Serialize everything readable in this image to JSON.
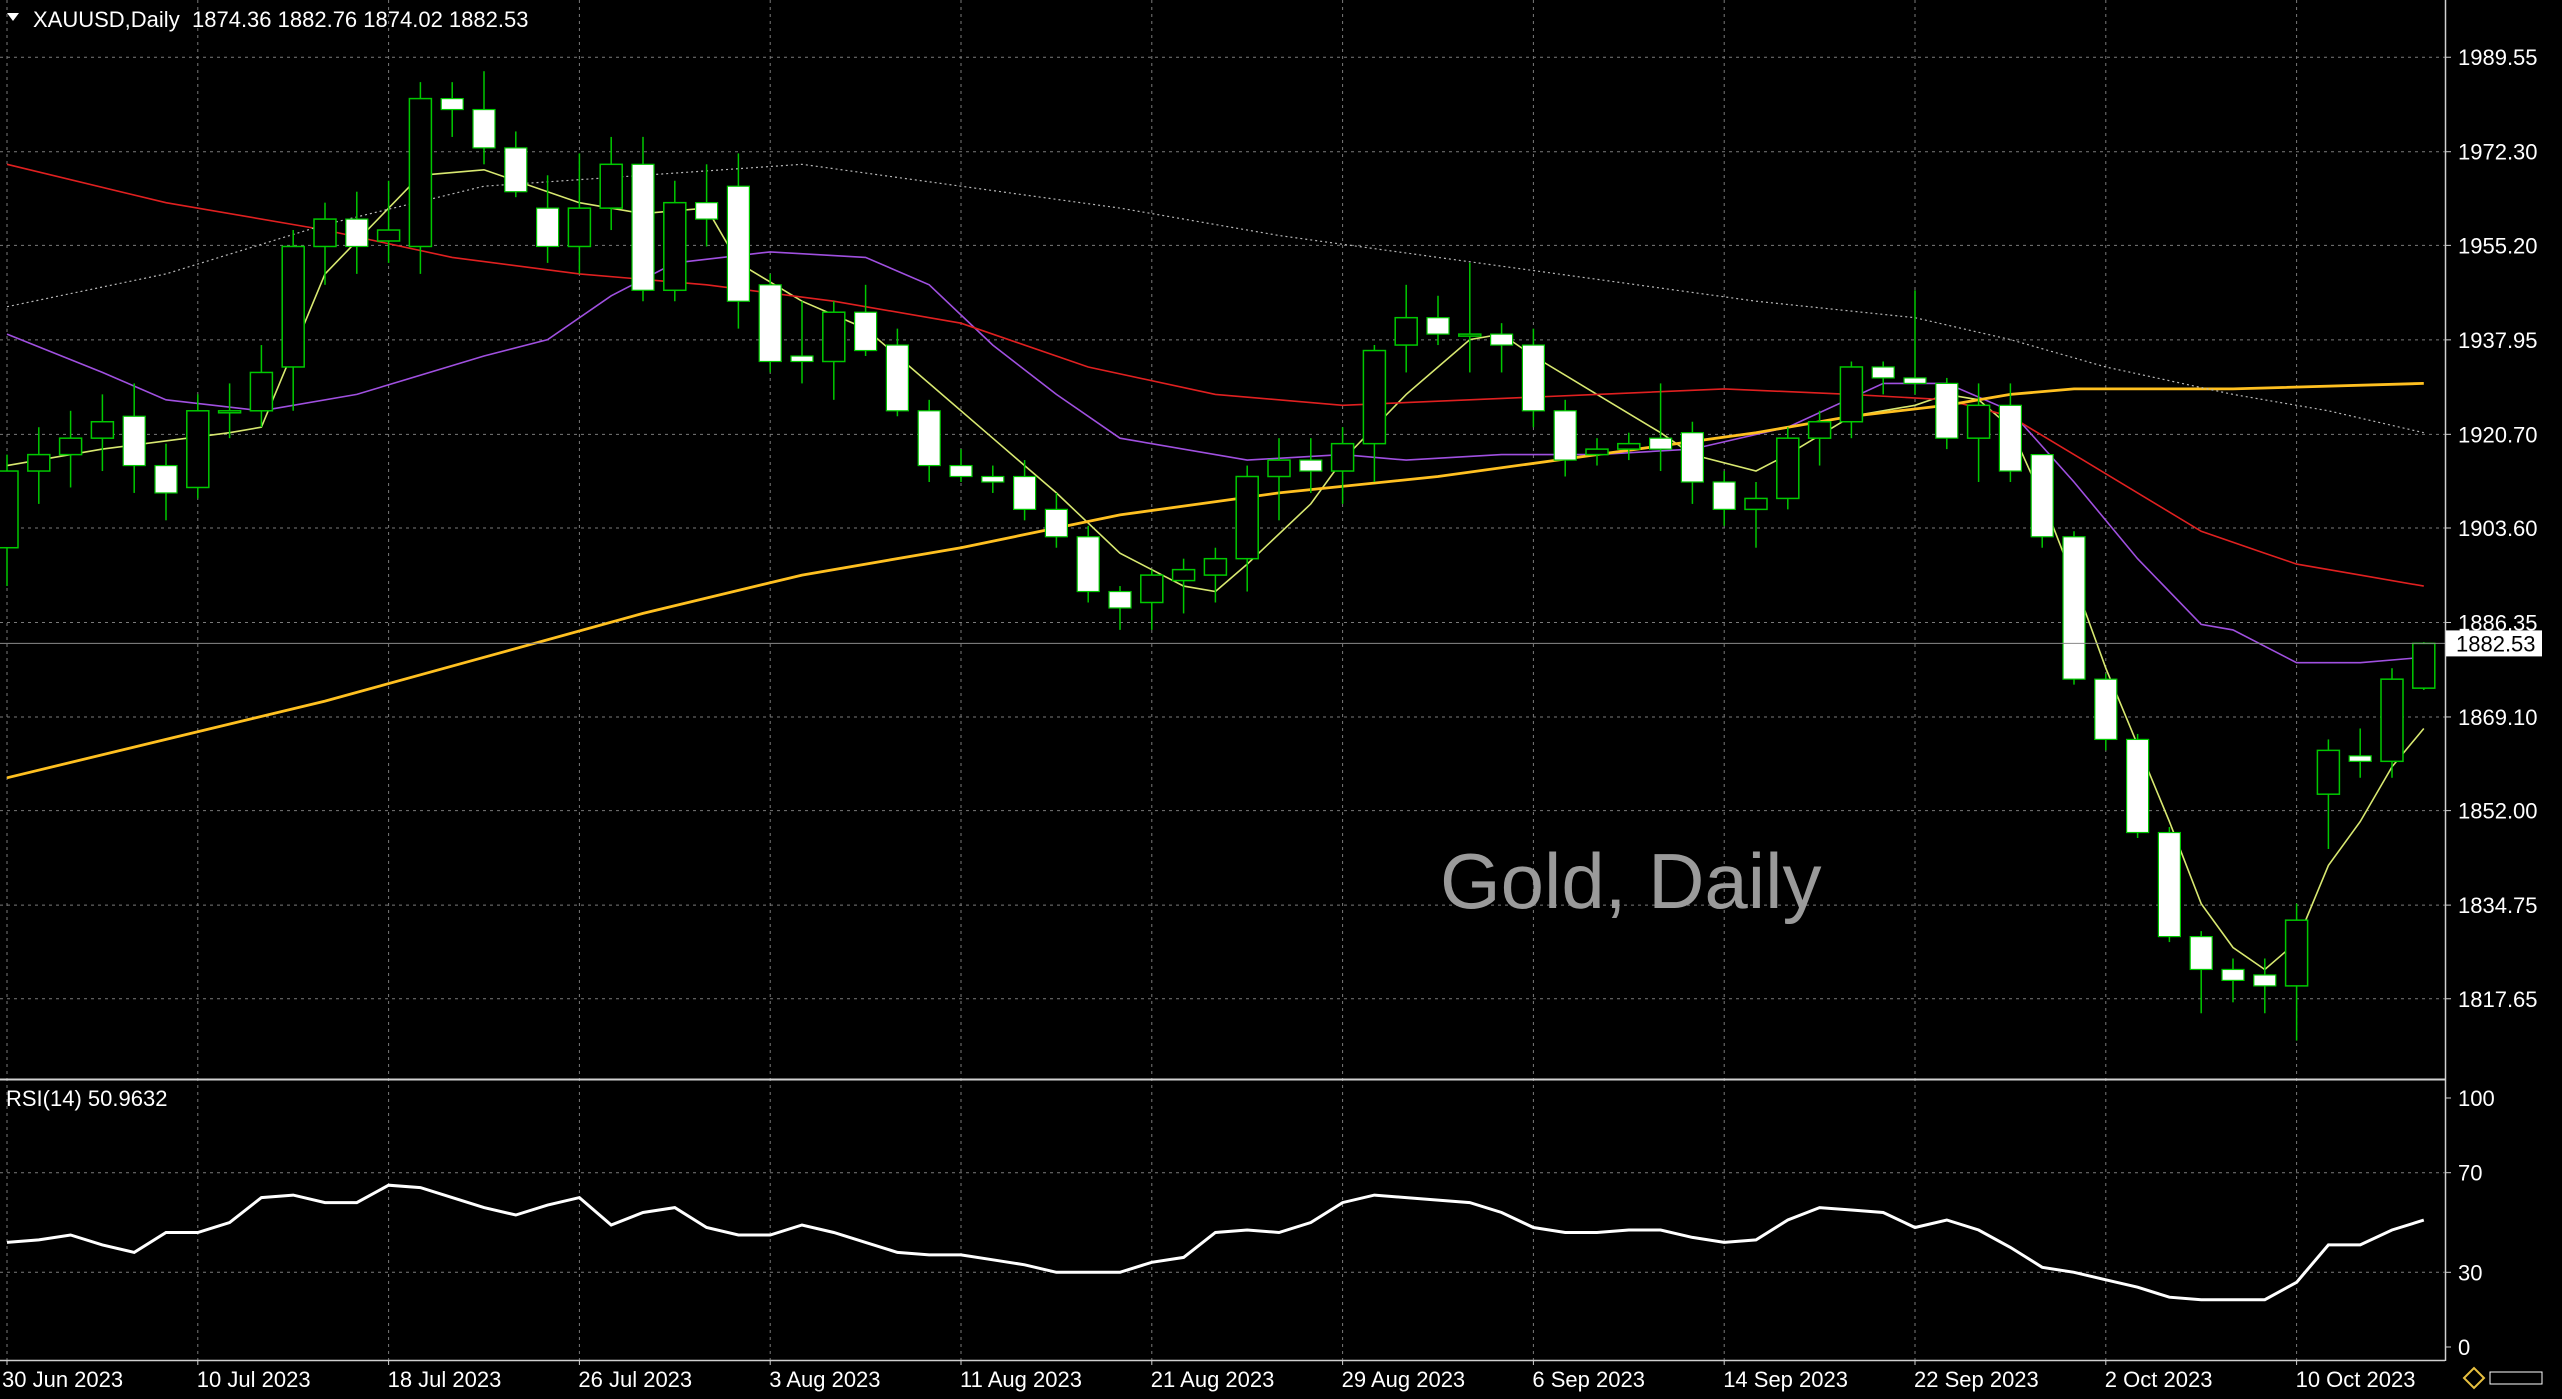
{
  "chart_data": [
    {
      "type": "candlestick",
      "symbol_header": "XAUUSD,Daily",
      "ohlc_header": "1874.36 1882.76 1874.02 1882.53",
      "watermark": "Gold, Daily",
      "current_price_label": "1882.53",
      "current_price": 1882.53,
      "ylim": [
        1803,
        2000
      ],
      "y_ticks": [
        "1989.55",
        "1972.30",
        "1955.20",
        "1937.95",
        "1920.70",
        "1903.60",
        "1886.35",
        "1869.10",
        "1852.00",
        "1834.75",
        "1817.65"
      ],
      "x_ticks": [
        "30 Jun 2023",
        "10 Jul 2023",
        "18 Jul 2023",
        "26 Jul 2023",
        "3 Aug 2023",
        "11 Aug 2023",
        "21 Aug 2023",
        "29 Aug 2023",
        "6 Sep 2023",
        "14 Sep 2023",
        "22 Sep 2023",
        "2 Oct 2023",
        "10 Oct 2023"
      ],
      "candles": [
        [
          1900,
          1917,
          1893,
          1914
        ],
        [
          1914,
          1922,
          1908,
          1917
        ],
        [
          1917,
          1925,
          1911,
          1920
        ],
        [
          1920,
          1928,
          1914,
          1923
        ],
        [
          1924,
          1930,
          1910,
          1915
        ],
        [
          1915,
          1919,
          1905,
          1910
        ],
        [
          1911,
          1928,
          1909,
          1925
        ],
        [
          1925,
          1930,
          1920,
          1925
        ],
        [
          1925,
          1937,
          1922,
          1932
        ],
        [
          1933,
          1958,
          1925,
          1955
        ],
        [
          1955,
          1963,
          1948,
          1960
        ],
        [
          1960,
          1965,
          1950,
          1955
        ],
        [
          1956,
          1967,
          1952,
          1958
        ],
        [
          1955,
          1985,
          1950,
          1982
        ],
        [
          1982,
          1985,
          1975,
          1980
        ],
        [
          1980,
          1987,
          1970,
          1973
        ],
        [
          1973,
          1976,
          1964,
          1965
        ],
        [
          1962,
          1968,
          1952,
          1955
        ],
        [
          1955,
          1972,
          1950,
          1962
        ],
        [
          1962,
          1975,
          1958,
          1970
        ],
        [
          1970,
          1975,
          1945,
          1947
        ],
        [
          1947,
          1967,
          1945,
          1963
        ],
        [
          1963,
          1970,
          1955,
          1960
        ],
        [
          1966,
          1972,
          1940,
          1945
        ],
        [
          1948,
          1950,
          1932,
          1934
        ],
        [
          1935,
          1945,
          1930,
          1934
        ],
        [
          1934,
          1945,
          1927,
          1943
        ],
        [
          1943,
          1948,
          1935,
          1936
        ],
        [
          1937,
          1940,
          1924,
          1925
        ],
        [
          1925,
          1927,
          1912,
          1915
        ],
        [
          1915,
          1918,
          1912,
          1913
        ],
        [
          1913,
          1915,
          1910,
          1912
        ],
        [
          1913,
          1916,
          1905,
          1907
        ],
        [
          1907,
          1910,
          1900,
          1902
        ],
        [
          1902,
          1904,
          1890,
          1892
        ],
        [
          1892,
          1893,
          1885,
          1889
        ],
        [
          1890,
          1896,
          1885,
          1895
        ],
        [
          1894,
          1898,
          1888,
          1896
        ],
        [
          1895,
          1900,
          1890,
          1898
        ],
        [
          1898,
          1915,
          1892,
          1913
        ],
        [
          1913,
          1920,
          1905,
          1916
        ],
        [
          1916,
          1920,
          1910,
          1914
        ],
        [
          1914,
          1922,
          1908,
          1919
        ],
        [
          1919,
          1937,
          1912,
          1936
        ],
        [
          1937,
          1948,
          1932,
          1942
        ],
        [
          1942,
          1946,
          1937,
          1939
        ],
        [
          1939,
          1952,
          1932,
          1939
        ],
        [
          1939,
          1941,
          1932,
          1937
        ],
        [
          1937,
          1940,
          1922,
          1925
        ],
        [
          1925,
          1927,
          1913,
          1916
        ],
        [
          1917,
          1920,
          1915,
          1918
        ],
        [
          1918,
          1921,
          1916,
          1919
        ],
        [
          1920,
          1930,
          1914,
          1918
        ],
        [
          1921,
          1923,
          1908,
          1912
        ],
        [
          1912,
          1914,
          1904,
          1907
        ],
        [
          1907,
          1912,
          1900,
          1909
        ],
        [
          1909,
          1922,
          1907,
          1920
        ],
        [
          1920,
          1925,
          1915,
          1923
        ],
        [
          1923,
          1934,
          1920,
          1933
        ],
        [
          1933,
          1934,
          1928,
          1931
        ],
        [
          1931,
          1947,
          1928,
          1930
        ],
        [
          1930,
          1931,
          1918,
          1920
        ],
        [
          1920,
          1930,
          1912,
          1926
        ],
        [
          1926,
          1930,
          1912,
          1914
        ],
        [
          1917,
          1917,
          1900,
          1902
        ],
        [
          1902,
          1903,
          1875,
          1876
        ],
        [
          1876,
          1877,
          1863,
          1865
        ],
        [
          1865,
          1866,
          1847,
          1848
        ],
        [
          1848,
          1849,
          1828,
          1829
        ],
        [
          1829,
          1830,
          1815,
          1823
        ],
        [
          1823,
          1825,
          1817,
          1821
        ],
        [
          1822,
          1825,
          1815,
          1820
        ],
        [
          1820,
          1835,
          1810,
          1832
        ],
        [
          1855,
          1865,
          1845,
          1863
        ],
        [
          1862,
          1867,
          1858,
          1861
        ],
        [
          1861,
          1878,
          1858,
          1876
        ],
        [
          1874.36,
          1882.76,
          1874.02,
          1882.53
        ]
      ],
      "ma_lines": [
        {
          "color": "#d8e870",
          "width": 1.6,
          "dash": "",
          "points": [
            [
              0,
              1915
            ],
            [
              3,
              1918
            ],
            [
              7,
              1921
            ],
            [
              8,
              1922
            ],
            [
              10,
              1950
            ],
            [
              13,
              1968
            ],
            [
              15,
              1969
            ],
            [
              18,
              1963
            ],
            [
              20,
              1961
            ],
            [
              22,
              1962
            ],
            [
              23,
              1952
            ],
            [
              25,
              1945
            ],
            [
              27,
              1940
            ],
            [
              29,
              1930
            ],
            [
              31,
              1920
            ],
            [
              33,
              1910
            ],
            [
              35,
              1899
            ],
            [
              37,
              1893
            ],
            [
              38,
              1892
            ],
            [
              39,
              1897
            ],
            [
              41,
              1908
            ],
            [
              42,
              1916
            ],
            [
              44,
              1928
            ],
            [
              46,
              1938
            ],
            [
              47,
              1939
            ],
            [
              48,
              1935
            ],
            [
              50,
              1928
            ],
            [
              52,
              1921
            ],
            [
              53,
              1917
            ],
            [
              55,
              1914
            ],
            [
              56,
              1917
            ],
            [
              58,
              1924
            ],
            [
              60,
              1926
            ],
            [
              61,
              1928
            ],
            [
              62,
              1927
            ],
            [
              63,
              1922
            ],
            [
              64,
              1909
            ],
            [
              65,
              1894
            ],
            [
              66,
              1878
            ],
            [
              68,
              1850
            ],
            [
              69,
              1835
            ],
            [
              70,
              1827
            ],
            [
              71,
              1823
            ],
            [
              72,
              1828
            ],
            [
              73,
              1842
            ],
            [
              74,
              1850
            ],
            [
              75,
              1860
            ],
            [
              76,
              1867
            ]
          ]
        },
        {
          "color": "#a050e0",
          "width": 1.6,
          "dash": "",
          "points": [
            [
              0,
              1939
            ],
            [
              3,
              1932
            ],
            [
              5,
              1927
            ],
            [
              8,
              1925
            ],
            [
              11,
              1928
            ],
            [
              15,
              1935
            ],
            [
              17,
              1938
            ],
            [
              19,
              1946
            ],
            [
              21,
              1952
            ],
            [
              24,
              1954
            ],
            [
              27,
              1953
            ],
            [
              29,
              1948
            ],
            [
              31,
              1937
            ],
            [
              33,
              1928
            ],
            [
              35,
              1920
            ],
            [
              39,
              1916
            ],
            [
              42,
              1917
            ],
            [
              44,
              1916
            ],
            [
              47,
              1917
            ],
            [
              50,
              1917
            ],
            [
              53,
              1918
            ],
            [
              56,
              1922
            ],
            [
              59,
              1930
            ],
            [
              61,
              1930
            ],
            [
              63,
              1925
            ],
            [
              65,
              1912
            ],
            [
              67,
              1898
            ],
            [
              69,
              1886
            ],
            [
              70,
              1885
            ],
            [
              72,
              1879
            ],
            [
              74,
              1879
            ],
            [
              76,
              1880
            ]
          ]
        },
        {
          "color": "#e02020",
          "width": 1.6,
          "dash": "",
          "points": [
            [
              0,
              1970
            ],
            [
              5,
              1963
            ],
            [
              10,
              1958
            ],
            [
              14,
              1953
            ],
            [
              18,
              1950
            ],
            [
              22,
              1948
            ],
            [
              26,
              1945
            ],
            [
              30,
              1941
            ],
            [
              34,
              1933
            ],
            [
              38,
              1928
            ],
            [
              42,
              1926
            ],
            [
              46,
              1927
            ],
            [
              50,
              1928
            ],
            [
              54,
              1929
            ],
            [
              58,
              1928
            ],
            [
              61,
              1927
            ],
            [
              63,
              1924
            ],
            [
              65,
              1917
            ],
            [
              67,
              1910
            ],
            [
              69,
              1903
            ],
            [
              71,
              1899
            ],
            [
              72,
              1897
            ],
            [
              74,
              1895
            ],
            [
              76,
              1893
            ]
          ]
        },
        {
          "color": "#ffc020",
          "width": 2.8,
          "dash": "",
          "points": [
            [
              0,
              1858
            ],
            [
              5,
              1865
            ],
            [
              10,
              1872
            ],
            [
              15,
              1880
            ],
            [
              20,
              1888
            ],
            [
              25,
              1895
            ],
            [
              30,
              1900
            ],
            [
              35,
              1906
            ],
            [
              40,
              1910
            ],
            [
              45,
              1913
            ],
            [
              50,
              1917
            ],
            [
              55,
              1921
            ],
            [
              58,
              1924
            ],
            [
              61,
              1926
            ],
            [
              63,
              1928
            ],
            [
              65,
              1929
            ],
            [
              70,
              1929
            ],
            [
              76,
              1930
            ]
          ]
        },
        {
          "color": "#b8b8b8",
          "width": 1.2,
          "dash": "2 3",
          "points": [
            [
              0,
              1944
            ],
            [
              5,
              1950
            ],
            [
              10,
              1959
            ],
            [
              15,
              1966
            ],
            [
              20,
              1968
            ],
            [
              25,
              1970
            ],
            [
              30,
              1966
            ],
            [
              35,
              1962
            ],
            [
              40,
              1957
            ],
            [
              45,
              1953
            ],
            [
              50,
              1949
            ],
            [
              55,
              1945
            ],
            [
              60,
              1942
            ],
            [
              63,
              1938
            ],
            [
              66,
              1933
            ],
            [
              70,
              1928
            ],
            [
              73,
              1925
            ],
            [
              76,
              1921
            ]
          ]
        }
      ],
      "rsi": {
        "label": "RSI(14) 50.9632",
        "ylim": [
          0,
          100
        ],
        "y_ticks": [
          "100",
          "70",
          "30",
          "0"
        ],
        "values": [
          42,
          43,
          45,
          41,
          38,
          46,
          46,
          50,
          60,
          61,
          58,
          58,
          65,
          64,
          60,
          56,
          53,
          57,
          60,
          49,
          54,
          56,
          48,
          45,
          45,
          49,
          46,
          42,
          38,
          37,
          37,
          35,
          33,
          30,
          30,
          30,
          34,
          36,
          46,
          47,
          46,
          50,
          58,
          61,
          60,
          59,
          58,
          54,
          48,
          46,
          46,
          47,
          47,
          44,
          42,
          43,
          51,
          56,
          55,
          54,
          48,
          51,
          47,
          40,
          32,
          30,
          27,
          24,
          20,
          19,
          19,
          19,
          26,
          41,
          41,
          47,
          50.96
        ]
      }
    }
  ]
}
